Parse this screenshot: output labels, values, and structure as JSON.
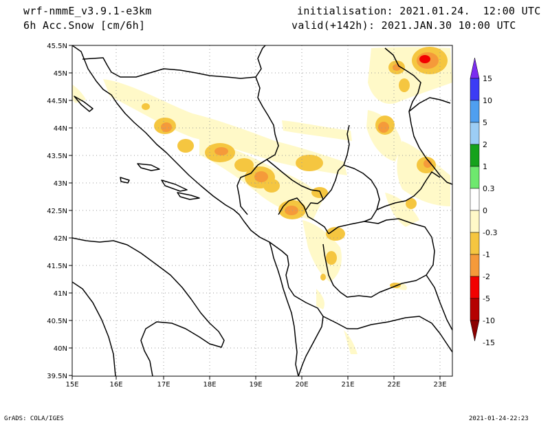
{
  "header": {
    "model": "wrf-nmmE_v3.9.1-e3km",
    "variable": "6h Acc.Snow [cm/6h]",
    "init": "initialisation: 2021.01.24.  12:00 UTC",
    "valid": "valid(+142h): 2021.JAN.30 10:00 UTC"
  },
  "axes": {
    "lat_labels": [
      "45.5N",
      "45N",
      "44.5N",
      "44N",
      "43.5N",
      "43N",
      "42.5N",
      "42N",
      "41.5N",
      "41N",
      "40.5N",
      "40N",
      "39.5N"
    ],
    "lon_labels": [
      "15E",
      "16E",
      "17E",
      "18E",
      "19E",
      "20E",
      "21E",
      "22E",
      "23E"
    ]
  },
  "colorbar": {
    "levels": [
      "15",
      "10",
      "5",
      "2",
      "1",
      "0.3",
      "0",
      "-0.3",
      "-1",
      "-2",
      "-5",
      "-10",
      "-15"
    ],
    "colors": [
      "#7b2cf0",
      "#3c3cf5",
      "#4f9ff0",
      "#9ccdf5",
      "#16a21c",
      "#6ee86e",
      "#ffffff",
      "#fff9c8",
      "#f5c640",
      "#f59a3a",
      "#f20000",
      "#b50000",
      "#8b0000"
    ]
  },
  "footer": {
    "left": "GrADS: COLA/IGES",
    "right": "2021-01-24-22:23"
  }
}
